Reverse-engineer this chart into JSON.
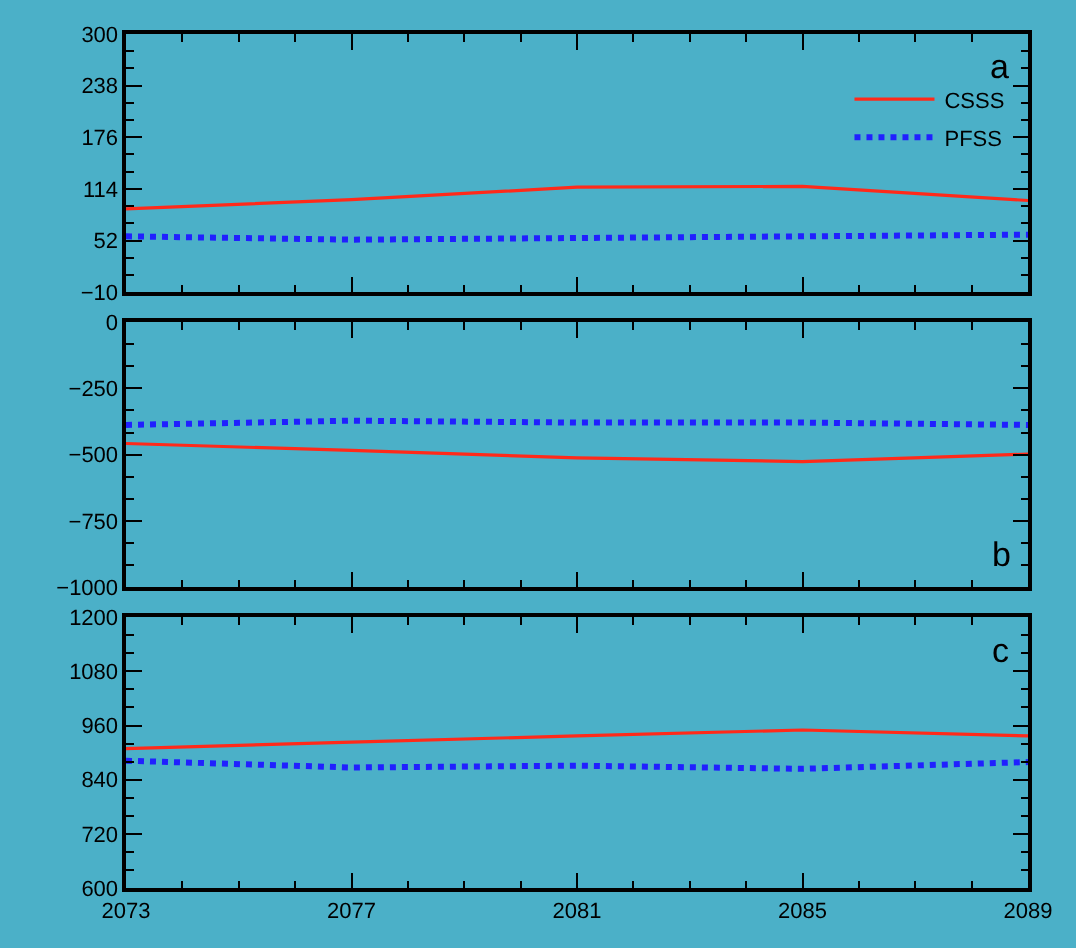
{
  "chart_data": [
    {
      "type": "line",
      "x": [
        2073,
        2077,
        2081,
        2085,
        2089
      ],
      "xlim": [
        2073,
        2089
      ],
      "xticks": [
        2073,
        2077,
        2081,
        2085,
        2089
      ],
      "ylim": [
        -10,
        300
      ],
      "yticks": [
        {
          "value": -10,
          "label": "−10"
        },
        52,
        114,
        176,
        238,
        300
      ],
      "tick_labels": "y",
      "grid": false,
      "legend": "top right",
      "annotations": [
        "a"
      ],
      "series": [
        {
          "name": "CSSS",
          "color": "#ff2a1a",
          "line_style": "solid",
          "values": [
            90,
            101,
            116,
            117,
            100
          ]
        },
        {
          "name": "PFSS",
          "color": "#2020ff",
          "line_style": "dotted",
          "values": [
            57,
            53,
            55,
            57,
            59
          ]
        }
      ]
    },
    {
      "type": "line",
      "x": [
        2073,
        2077,
        2081,
        2085,
        2089
      ],
      "xlim": [
        2073,
        2089
      ],
      "xticks": [
        2073,
        2077,
        2081,
        2085,
        2089
      ],
      "ylim": [
        -1000,
        0
      ],
      "yticks": [
        {
          "value": -1000,
          "label": "−1000"
        },
        {
          "value": -750,
          "label": "−750"
        },
        {
          "value": -500,
          "label": "−500"
        },
        {
          "value": -250,
          "label": "−250"
        },
        0
      ],
      "tick_labels": "y",
      "grid": false,
      "annotations": [
        "b"
      ],
      "series": [
        {
          "color": "#ff2a1a",
          "line_style": "solid",
          "values": [
            -458,
            -484,
            -512,
            -526,
            -498
          ]
        },
        {
          "color": "#2020ff",
          "line_style": "dotted",
          "values": [
            -388,
            -372,
            -379,
            -379,
            -388
          ]
        }
      ]
    },
    {
      "type": "line",
      "x": [
        2073,
        2077,
        2081,
        2085,
        2089
      ],
      "xlim": [
        2073,
        2089
      ],
      "xticks": [
        2073,
        2077,
        2081,
        2085,
        2089
      ],
      "ylim": [
        600,
        1200
      ],
      "yticks": [
        600,
        720,
        840,
        960,
        1080,
        1200
      ],
      "grid": false,
      "annotations": [
        "c"
      ],
      "series": [
        {
          "color": "#ff2a1a",
          "line_style": "solid",
          "values": [
            909,
            923,
            937,
            950,
            937
          ]
        },
        {
          "color": "#2020ff",
          "line_style": "dotted",
          "values": [
            882,
            867,
            871,
            864,
            879
          ]
        }
      ]
    }
  ]
}
